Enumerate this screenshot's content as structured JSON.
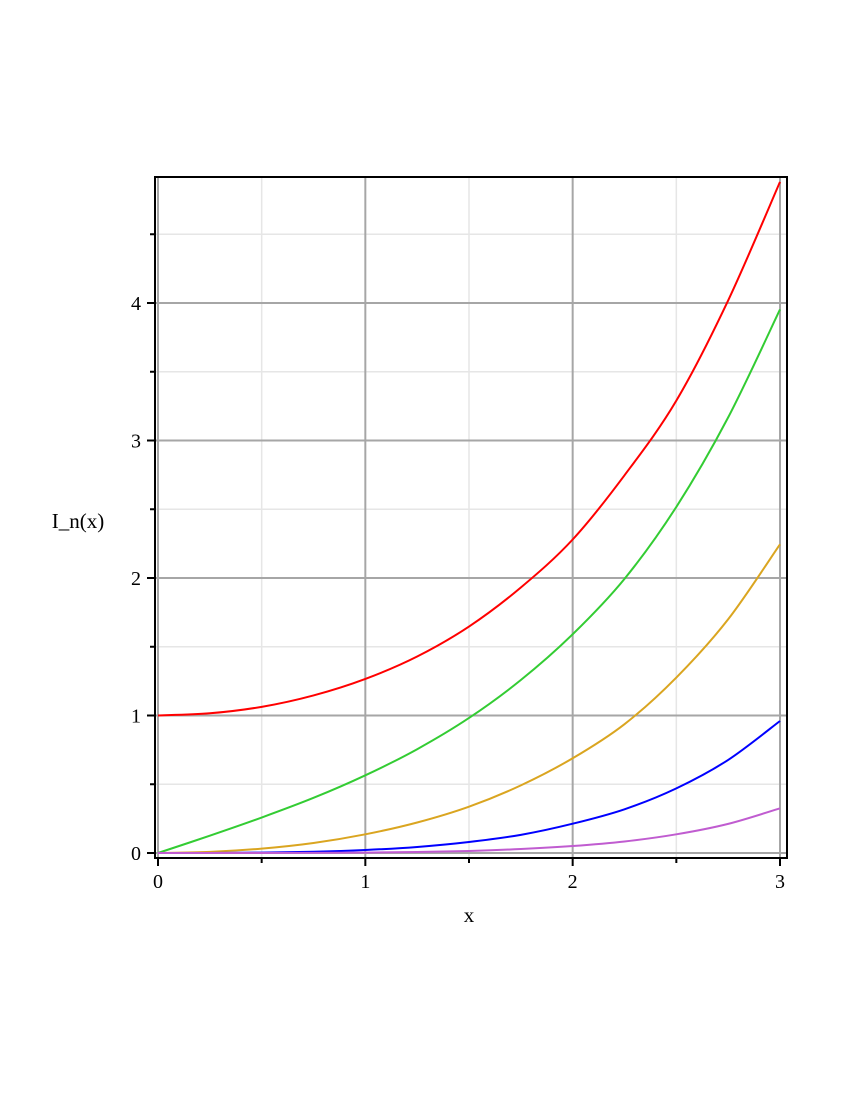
{
  "chart_data": {
    "type": "line",
    "title": "",
    "xlabel": "x",
    "ylabel": "I_n(x)",
    "xlim": [
      0,
      3
    ],
    "ylim": [
      0,
      4.88
    ],
    "xticks": [
      0,
      1,
      2,
      3
    ],
    "xtick_labels": [
      "0",
      "1",
      "2",
      "3"
    ],
    "yticks": [
      0,
      1,
      2,
      3,
      4
    ],
    "ytick_labels": [
      "0",
      "1",
      "2",
      "3",
      "4"
    ],
    "grid": true,
    "legend": "none",
    "x": [
      0,
      0.25,
      0.5,
      0.75,
      1,
      1.25,
      1.5,
      1.75,
      2,
      2.25,
      2.5,
      2.75,
      3
    ],
    "series": [
      {
        "color": "#ff0000",
        "values": [
          1,
          1.016,
          1.063,
          1.146,
          1.266,
          1.429,
          1.647,
          1.931,
          2.28,
          2.747,
          3.29,
          4.019,
          4.881
        ]
      },
      {
        "color": "#33cc33",
        "values": [
          0,
          0.126,
          0.258,
          0.401,
          0.565,
          0.755,
          0.982,
          1.258,
          1.591,
          1.994,
          2.517,
          3.168,
          3.953
        ]
      },
      {
        "color": "#daa520",
        "values": [
          0,
          0.008,
          0.032,
          0.073,
          0.136,
          0.222,
          0.337,
          0.492,
          0.689,
          0.937,
          1.276,
          1.7,
          2.245
        ]
      },
      {
        "color": "#0000ff",
        "values": [
          0,
          0.0003,
          0.003,
          0.009,
          0.022,
          0.044,
          0.08,
          0.132,
          0.213,
          0.318,
          0.47,
          0.677,
          0.96
        ]
      },
      {
        "color": "#c05cd0",
        "values": [
          0,
          0,
          0.0002,
          0.0009,
          0.003,
          0.007,
          0.015,
          0.029,
          0.051,
          0.084,
          0.136,
          0.212,
          0.325
        ]
      }
    ]
  }
}
